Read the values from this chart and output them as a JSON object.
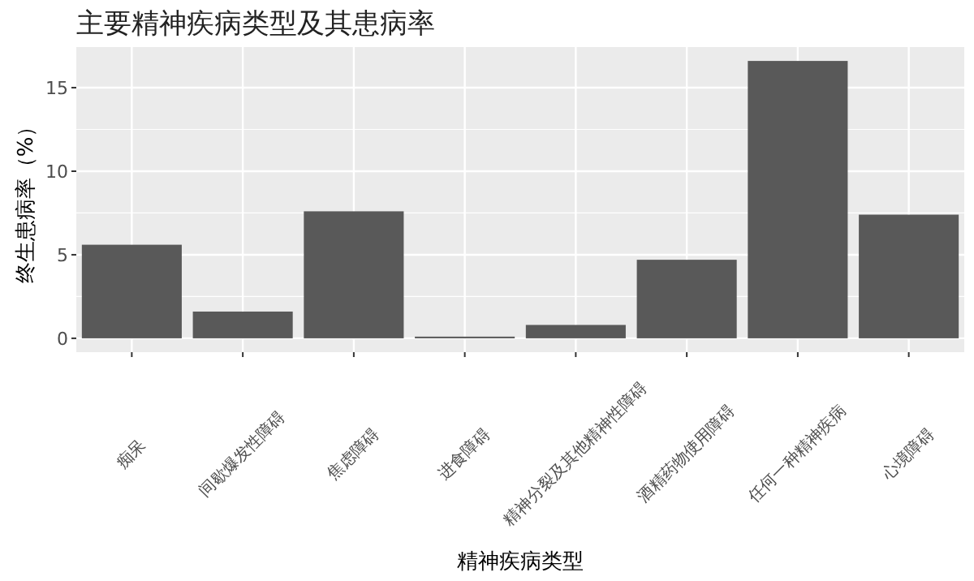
{
  "chart_data": {
    "type": "bar",
    "title": "主要精神疾病类型及其患病率",
    "xlabel": "精神疾病类型",
    "ylabel": "终生患病率（%）",
    "categories": [
      "痴呆",
      "间歇爆发性障碍",
      "焦虑障碍",
      "进食障碍",
      "精神分裂及其他精神性障碍",
      "酒精药物使用障碍",
      "任何一种精神疾病",
      "心境障碍"
    ],
    "values": [
      5.6,
      1.6,
      7.6,
      0.1,
      0.8,
      4.7,
      16.6,
      7.4
    ],
    "color": "#595959",
    "ylim": [
      -0.83,
      17.43
    ],
    "yticks": [
      0,
      5,
      10,
      15
    ],
    "grid": true
  }
}
